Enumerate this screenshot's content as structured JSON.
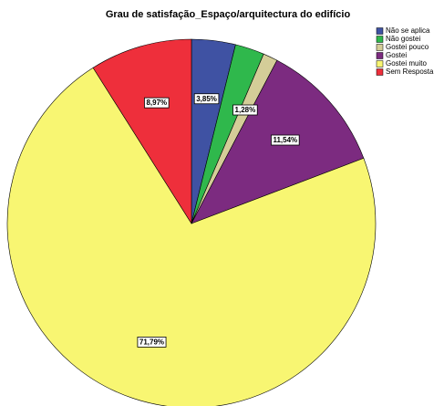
{
  "chart_data": {
    "type": "pie",
    "title": "Grau de satisfação_Espaço/arquitectura do edifício",
    "categories": [
      "Não se aplica",
      "Não gostei",
      "Gostei pouco",
      "Gostei",
      "Gostei muito",
      "Sem Resposta"
    ],
    "values": [
      3.85,
      2.56,
      1.28,
      11.54,
      71.79,
      8.97
    ],
    "value_labels": [
      "3,85%",
      null,
      "1,28%",
      "11,54%",
      "71,79%",
      "8,97%"
    ],
    "colors": [
      "#3f52a3",
      "#2fb84c",
      "#d4cd98",
      "#7c2b80",
      "#f8f672",
      "#ee2f3b"
    ],
    "legend": "top-right"
  }
}
